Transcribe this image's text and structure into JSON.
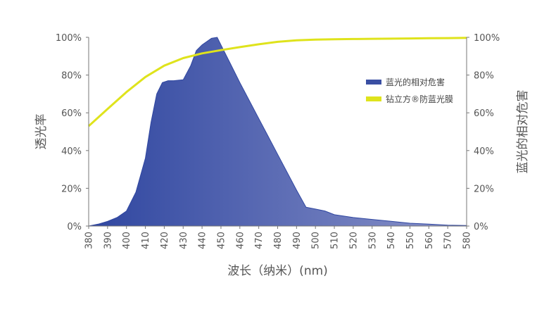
{
  "chart_data": {
    "type": "area",
    "xlabel": "波长（纳米）(nm)",
    "ylabel_left": "透光率",
    "ylabel_right": "蓝光的相对危害",
    "xlim": [
      380,
      580
    ],
    "ylim": [
      0,
      100
    ],
    "x_ticks": [
      "380",
      "390",
      "400",
      "410",
      "420",
      "430",
      "440",
      "450",
      "460",
      "470",
      "480",
      "490",
      "500",
      "510",
      "520",
      "530",
      "540",
      "550",
      "560",
      "570",
      "580"
    ],
    "y_ticks_left": [
      "0%",
      "20%",
      "40%",
      "60%",
      "80%",
      "100%"
    ],
    "y_ticks_right": [
      "0%",
      "20%",
      "40%",
      "60%",
      "80%",
      "100%"
    ],
    "legend_position": "right",
    "series": [
      {
        "name": "蓝光的相对危害",
        "kind": "area",
        "color": "#3a4fa3",
        "x": [
          380,
          385,
          390,
          395,
          400,
          405,
          410,
          413,
          416,
          419,
          422,
          425,
          430,
          434,
          437,
          440,
          445,
          448,
          450,
          455,
          460,
          470,
          480,
          490,
          495,
          500,
          505,
          510,
          520,
          530,
          540,
          550,
          560,
          570,
          580
        ],
        "y": [
          0,
          1,
          2.5,
          4.5,
          8,
          18,
          36,
          55,
          70,
          76,
          77,
          77,
          77.5,
          85,
          93,
          96,
          99.5,
          100,
          96,
          86,
          76,
          57,
          38,
          19,
          10,
          9,
          8,
          6,
          4.5,
          3.5,
          2.5,
          1.5,
          1,
          0.5,
          0.3
        ]
      },
      {
        "name": "钻立方®防蓝光膜",
        "kind": "line",
        "color": "#dfe31c",
        "x": [
          380,
          390,
          400,
          410,
          420,
          430,
          440,
          450,
          460,
          470,
          480,
          490,
          500,
          510,
          520,
          530,
          540,
          550,
          560,
          570,
          580
        ],
        "y": [
          53,
          62,
          71,
          79,
          85,
          89,
          91.5,
          93.2,
          94.8,
          96.3,
          97.6,
          98.4,
          98.8,
          99,
          99.1,
          99.2,
          99.3,
          99.4,
          99.5,
          99.6,
          99.7
        ]
      }
    ]
  }
}
